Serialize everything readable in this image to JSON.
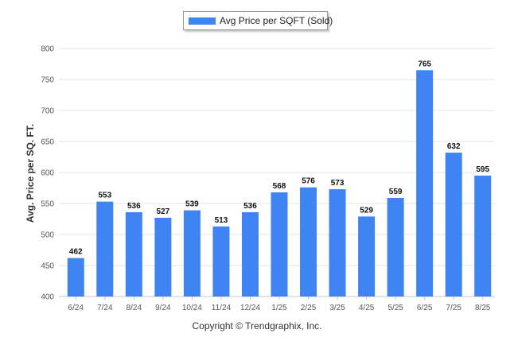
{
  "legend": {
    "label": "Avg Price per SQFT (Sold)",
    "color": "#3f84f3"
  },
  "copyright": "Copyright © Trendgraphix, Inc.",
  "chart_data": {
    "type": "bar",
    "title": "",
    "xlabel": "",
    "ylabel": "Avg. Price per SQ. FT.",
    "ylim": [
      400,
      800
    ],
    "yticks": [
      400,
      450,
      500,
      550,
      600,
      650,
      700,
      750,
      800
    ],
    "grid": true,
    "legend_position": "top-center",
    "categories": [
      "6/24",
      "7/24",
      "8/24",
      "9/24",
      "10/24",
      "11/24",
      "12/24",
      "1/25",
      "2/25",
      "3/25",
      "4/25",
      "5/25",
      "6/25",
      "7/25",
      "8/25"
    ],
    "series": [
      {
        "name": "Avg Price per SQFT (Sold)",
        "color": "#3f84f3",
        "values": [
          462,
          553,
          536,
          527,
          539,
          513,
          536,
          568,
          576,
          573,
          529,
          559,
          765,
          632,
          595
        ]
      }
    ]
  }
}
